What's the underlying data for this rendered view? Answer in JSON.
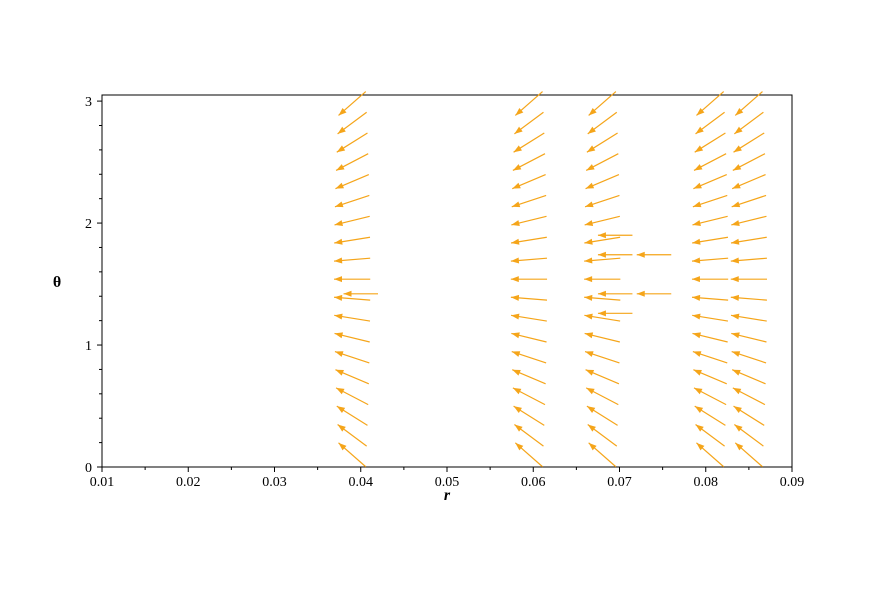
{
  "chart_data": {
    "type": "vector-field",
    "xlabel": "r",
    "ylabel": "θ",
    "xlim": [
      0.01,
      0.09
    ],
    "ylim": [
      0,
      3.05
    ],
    "xticks": [
      "0.01",
      "0.02",
      "0.03",
      "0.04",
      "0.05",
      "0.06",
      "0.07",
      "0.08",
      "0.09"
    ],
    "yticks": [
      "0",
      "1",
      "2",
      "3"
    ],
    "arrow_color": "#f5a51a",
    "grid": false,
    "columns_r": [
      0.039,
      0.0595,
      0.068,
      0.0805,
      0.085
    ],
    "theta_rows": [
      0.1,
      0.26,
      0.42,
      0.58,
      0.74,
      0.9,
      1.06,
      1.22,
      1.38,
      1.54,
      1.7,
      1.86,
      2.02,
      2.18,
      2.34,
      2.5,
      2.66,
      2.82,
      2.98
    ],
    "base_vector_length_r": 0.0042,
    "extra_vectors": [
      {
        "r": 0.042,
        "theta": 1.42,
        "dr": -0.004,
        "dtheta": 0.0
      },
      {
        "r": 0.0715,
        "theta": 1.26,
        "dr": -0.004,
        "dtheta": 0.0
      },
      {
        "r": 0.0715,
        "theta": 1.42,
        "dr": -0.004,
        "dtheta": 0.0
      },
      {
        "r": 0.0715,
        "theta": 1.74,
        "dr": -0.004,
        "dtheta": 0.0
      },
      {
        "r": 0.0715,
        "theta": 1.9,
        "dr": -0.004,
        "dtheta": 0.0
      },
      {
        "r": 0.076,
        "theta": 1.42,
        "dr": -0.004,
        "dtheta": 0.0
      },
      {
        "r": 0.076,
        "theta": 1.74,
        "dr": -0.004,
        "dtheta": 0.0
      }
    ]
  }
}
